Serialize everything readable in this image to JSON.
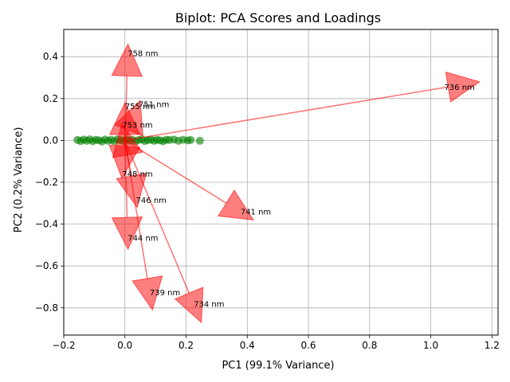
{
  "chart_data": {
    "type": "scatter",
    "title": "Biplot: PCA Scores and Loadings",
    "xlabel": "PC1 (99.1% Variance)",
    "ylabel": "PC2 (0.2% Variance)",
    "xlim": [
      -0.2,
      1.22
    ],
    "ylim": [
      -0.93,
      0.53
    ],
    "x_ticks": [
      -0.2,
      0.0,
      0.2,
      0.4,
      0.6,
      0.8,
      1.0,
      1.2
    ],
    "x_tick_labels": [
      "−0.2",
      "0.0",
      "0.2",
      "0.4",
      "0.6",
      "0.8",
      "1.0",
      "1.2"
    ],
    "y_ticks": [
      -0.8,
      -0.6,
      -0.4,
      -0.2,
      0.0,
      0.2,
      0.4
    ],
    "y_tick_labels": [
      "−0.8",
      "−0.6",
      "−0.4",
      "−0.2",
      "0.0",
      "0.2",
      "0.4"
    ],
    "grid": true,
    "colors": {
      "scores": "#008000",
      "loadings": "#ff0000"
    },
    "scores": {
      "x": [
        -0.155,
        -0.145,
        -0.135,
        -0.125,
        -0.115,
        -0.105,
        -0.095,
        -0.085,
        -0.075,
        -0.065,
        -0.055,
        -0.045,
        -0.035,
        -0.025,
        -0.015,
        -0.005,
        0.005,
        0.015,
        0.025,
        0.035,
        0.045,
        0.055,
        0.065,
        0.075,
        0.085,
        0.095,
        0.105,
        0.115,
        0.125,
        0.135,
        0.145,
        0.16,
        0.175,
        0.19,
        0.205,
        0.215,
        0.245
      ],
      "y": [
        0.002,
        -0.003,
        0.004,
        -0.002,
        0.005,
        -0.004,
        0.003,
        0.0,
        -0.005,
        0.004,
        -0.002,
        0.003,
        -0.004,
        0.005,
        0.001,
        -0.003,
        0.004,
        -0.001,
        0.003,
        -0.004,
        0.002,
        0.005,
        -0.003,
        0.001,
        0.004,
        -0.002,
        0.003,
        0.0,
        -0.004,
        0.003,
        0.002,
        0.004,
        -0.002,
        0.003,
        0.0,
        0.002,
        -0.002
      ]
    },
    "loadings": [
      {
        "name": "736 nm",
        "x": 1.16,
        "y": 0.28
      },
      {
        "name": "758 nm",
        "x": 0.01,
        "y": 0.46
      },
      {
        "name": "755 nm",
        "x": 0.0,
        "y": 0.18
      },
      {
        "name": "751 nm",
        "x": 0.05,
        "y": 0.19
      },
      {
        "name": "753 nm",
        "x": -0.01,
        "y": 0.08
      },
      {
        "name": "748 nm",
        "x": -0.01,
        "y": -0.18
      },
      {
        "name": "746 nm",
        "x": 0.04,
        "y": -0.32
      },
      {
        "name": "741 nm",
        "x": 0.42,
        "y": -0.38
      },
      {
        "name": "744 nm",
        "x": 0.01,
        "y": -0.52
      },
      {
        "name": "739 nm",
        "x": 0.09,
        "y": -0.81
      },
      {
        "name": "734 nm",
        "x": 0.25,
        "y": -0.87
      }
    ]
  }
}
